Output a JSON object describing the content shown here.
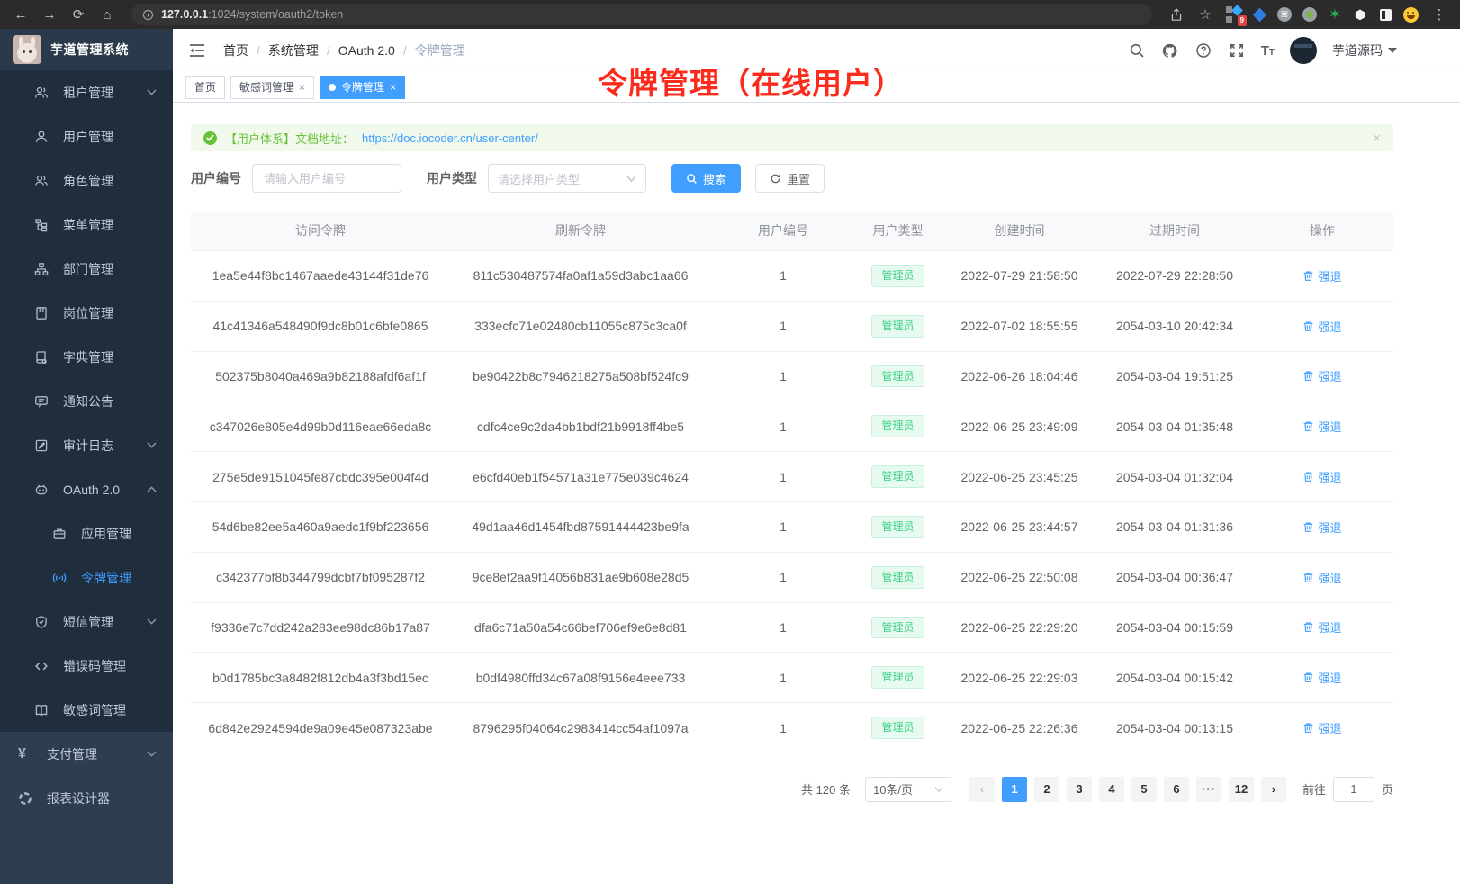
{
  "browser": {
    "url_host": "127.0.0.1",
    "url_rest": ":1024/system/oauth2/token",
    "extension_badge": "9"
  },
  "sidebar": {
    "app_title": "芋道管理系统",
    "items": [
      {
        "label": "租户管理",
        "icon": "tenant-icon",
        "level": 1,
        "chevron": "down"
      },
      {
        "label": "用户管理",
        "icon": "user-icon",
        "level": 1
      },
      {
        "label": "角色管理",
        "icon": "role-icon",
        "level": 1
      },
      {
        "label": "菜单管理",
        "icon": "menu-tree-icon",
        "level": 1
      },
      {
        "label": "部门管理",
        "icon": "dept-icon",
        "level": 1
      },
      {
        "label": "岗位管理",
        "icon": "post-icon",
        "level": 1
      },
      {
        "label": "字典管理",
        "icon": "dict-icon",
        "level": 1
      },
      {
        "label": "通知公告",
        "icon": "notice-icon",
        "level": 1
      },
      {
        "label": "审计日志",
        "icon": "audit-icon",
        "level": 1,
        "chevron": "down"
      },
      {
        "label": "OAuth 2.0",
        "icon": "oauth-icon",
        "level": 1,
        "chevron": "up"
      },
      {
        "label": "应用管理",
        "icon": "app-icon",
        "level": 2
      },
      {
        "label": "令牌管理",
        "icon": "token-icon",
        "level": 2,
        "active": true
      },
      {
        "label": "短信管理",
        "icon": "sms-shield-icon",
        "level": 1,
        "chevron": "down"
      },
      {
        "label": "错误码管理",
        "icon": "code-icon",
        "level": 1
      },
      {
        "label": "敏感词管理",
        "icon": "open-book-icon",
        "level": 1
      },
      {
        "label": "支付管理",
        "icon": "yen-icon",
        "level": 0,
        "section": "light",
        "chevron": "down"
      },
      {
        "label": "报表设计器",
        "icon": "report-icon",
        "level": 0,
        "section": "light"
      }
    ]
  },
  "navbar": {
    "breadcrumb": [
      "首页",
      "系统管理",
      "OAuth 2.0",
      "令牌管理"
    ],
    "username": "芋道源码"
  },
  "tabs": [
    {
      "label": "首页",
      "active": false,
      "closable": false
    },
    {
      "label": "敏感词管理",
      "active": false,
      "closable": true
    },
    {
      "label": "令牌管理",
      "active": true,
      "closable": true
    }
  ],
  "annotation": "令牌管理（在线用户）",
  "alert": {
    "text": "【用户体系】文档地址：",
    "link": "https://doc.iocoder.cn/user-center/"
  },
  "filter": {
    "user_id_label": "用户编号",
    "user_id_placeholder": "请输入用户编号",
    "user_type_label": "用户类型",
    "user_type_placeholder": "请选择用户类型",
    "search_label": "搜索",
    "reset_label": "重置"
  },
  "table": {
    "columns": [
      "访问令牌",
      "刷新令牌",
      "用户编号",
      "用户类型",
      "创建时间",
      "过期时间",
      "操作"
    ],
    "action_label": "强退",
    "rows": [
      {
        "access_token": "1ea5e44f8bc1467aaede43144f31de76",
        "refresh_token": "811c530487574fa0af1a59d3abc1aa66",
        "user_id": "1",
        "user_type": "管理员",
        "created": "2022-07-29 21:58:50",
        "expires": "2022-07-29 22:28:50"
      },
      {
        "access_token": "41c41346a548490f9dc8b01c6bfe0865",
        "refresh_token": "333ecfc71e02480cb11055c875c3ca0f",
        "user_id": "1",
        "user_type": "管理员",
        "created": "2022-07-02 18:55:55",
        "expires": "2054-03-10 20:42:34"
      },
      {
        "access_token": "502375b8040a469a9b82188afdf6af1f",
        "refresh_token": "be90422b8c7946218275a508bf524fc9",
        "user_id": "1",
        "user_type": "管理员",
        "created": "2022-06-26 18:04:46",
        "expires": "2054-03-04 19:51:25"
      },
      {
        "access_token": "c347026e805e4d99b0d116eae66eda8c",
        "refresh_token": "cdfc4ce9c2da4bb1bdf21b9918ff4be5",
        "user_id": "1",
        "user_type": "管理员",
        "created": "2022-06-25 23:49:09",
        "expires": "2054-03-04 01:35:48"
      },
      {
        "access_token": "275e5de9151045fe87cbdc395e004f4d",
        "refresh_token": "e6cfd40eb1f54571a31e775e039c4624",
        "user_id": "1",
        "user_type": "管理员",
        "created": "2022-06-25 23:45:25",
        "expires": "2054-03-04 01:32:04"
      },
      {
        "access_token": "54d6be82ee5a460a9aedc1f9bf223656",
        "refresh_token": "49d1aa46d1454fbd87591444423be9fa",
        "user_id": "1",
        "user_type": "管理员",
        "created": "2022-06-25 23:44:57",
        "expires": "2054-03-04 01:31:36"
      },
      {
        "access_token": "c342377bf8b344799dcbf7bf095287f2",
        "refresh_token": "9ce8ef2aa9f14056b831ae9b608e28d5",
        "user_id": "1",
        "user_type": "管理员",
        "created": "2022-06-25 22:50:08",
        "expires": "2054-03-04 00:36:47"
      },
      {
        "access_token": "f9336e7c7dd242a283ee98dc86b17a87",
        "refresh_token": "dfa6c71a50a54c66bef706ef9e6e8d81",
        "user_id": "1",
        "user_type": "管理员",
        "created": "2022-06-25 22:29:20",
        "expires": "2054-03-04 00:15:59"
      },
      {
        "access_token": "b0d1785bc3a8482f812db4a3f3bd15ec",
        "refresh_token": "b0df4980ffd34c67a08f9156e4eee733",
        "user_id": "1",
        "user_type": "管理员",
        "created": "2022-06-25 22:29:03",
        "expires": "2054-03-04 00:15:42"
      },
      {
        "access_token": "6d842e2924594de9a09e45e087323abe",
        "refresh_token": "8796295f04064c2983414cc54af1097a",
        "user_id": "1",
        "user_type": "管理员",
        "created": "2022-06-25 22:26:36",
        "expires": "2054-03-04 00:13:15"
      }
    ]
  },
  "pagination": {
    "total": "共 120 条",
    "page_size": "10条/页",
    "pages": [
      "1",
      "2",
      "3",
      "4",
      "5",
      "6",
      "···",
      "12"
    ],
    "active_page": "1",
    "goto_label": "前往",
    "goto_value": "1",
    "goto_suffix": "页"
  },
  "colors": {
    "primary": "#409eff",
    "success": "#67c23a",
    "badge_text": "#3bd186",
    "annotation_red": "#fb2c1c",
    "sidebar_dark": "#1f2d3d",
    "sidebar_light": "#2f3d50"
  }
}
